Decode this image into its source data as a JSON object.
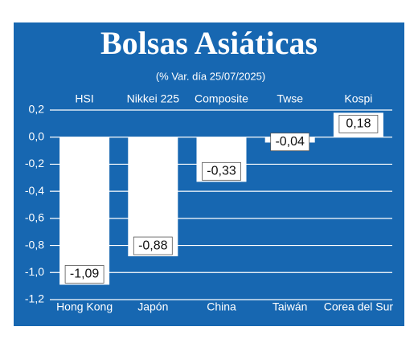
{
  "chart_data": {
    "type": "bar",
    "title": "Bolsas Asiáticas",
    "subtitle": "(% Var. día  25/07/2025)",
    "indices": [
      "HSI",
      "Nikkei 225",
      "Composite",
      "Twse",
      "Kospi"
    ],
    "categories": [
      "Hong Kong",
      "Japón",
      "China",
      "Taiwán",
      "Corea del Sur"
    ],
    "values": [
      -1.09,
      -0.88,
      -0.33,
      -0.04,
      0.18
    ],
    "value_labels": [
      "-1,09",
      "-0,88",
      "-0,33",
      "-0,04",
      "0,18"
    ],
    "color": "#ffffff",
    "background": "#1767b1",
    "ylim": [
      -1.2,
      0.2
    ],
    "yticks": [
      {
        "value": 0.2,
        "label": "0,2"
      },
      {
        "value": 0,
        "label": "0,0"
      },
      {
        "value": -0.2,
        "label": "-0,2"
      },
      {
        "value": -0.4,
        "label": "-0,4"
      },
      {
        "value": -0.6,
        "label": "-0,6"
      },
      {
        "value": -0.8,
        "label": "-0,8"
      },
      {
        "value": -1.0,
        "label": "-1,0"
      },
      {
        "value": -1.2,
        "label": "-1,2"
      }
    ],
    "grid": true
  }
}
